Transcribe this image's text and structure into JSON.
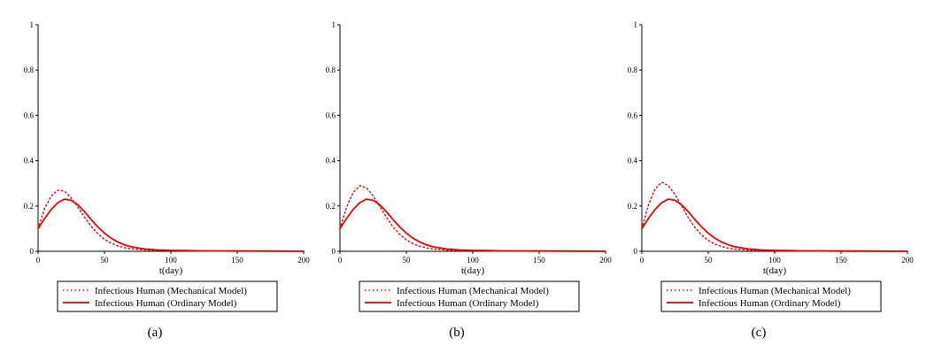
{
  "chart_data": [
    {
      "type": "line",
      "panel_label": "(a)",
      "xlabel": "t(day)",
      "xlim": [
        0,
        200
      ],
      "ylim": [
        0,
        1
      ],
      "x_ticks": [
        0,
        50,
        100,
        150,
        200
      ],
      "y_ticks": [
        0,
        0.2,
        0.4,
        0.6,
        0.8,
        1
      ],
      "y_tick_labels": [
        "0",
        "0.2",
        "0.4",
        "0.6",
        "0.8",
        "1"
      ],
      "legend": "bottom",
      "grid": false,
      "series": [
        {
          "name": "Infectious Human (Mechanical Model)",
          "style": "dotted",
          "color": "#e00000",
          "x": [
            0,
            5,
            10,
            15,
            20,
            25,
            30,
            35,
            40,
            45,
            50,
            55,
            60,
            65,
            70,
            80,
            90,
            100,
            110,
            120,
            130,
            150,
            200
          ],
          "y": [
            0.1,
            0.19,
            0.245,
            0.27,
            0.265,
            0.235,
            0.195,
            0.15,
            0.11,
            0.078,
            0.053,
            0.036,
            0.024,
            0.016,
            0.011,
            0.006,
            0.004,
            0.003,
            0.002,
            0.002,
            0.001,
            0.001,
            0.0
          ]
        },
        {
          "name": "Infectious Human (Ordinary Model)",
          "style": "solid",
          "color": "#e00000",
          "x": [
            0,
            5,
            10,
            15,
            20,
            25,
            30,
            35,
            40,
            45,
            50,
            55,
            60,
            65,
            70,
            80,
            90,
            100,
            110,
            120,
            150,
            200
          ],
          "y": [
            0.1,
            0.145,
            0.185,
            0.215,
            0.23,
            0.225,
            0.205,
            0.175,
            0.14,
            0.108,
            0.08,
            0.058,
            0.041,
            0.029,
            0.02,
            0.01,
            0.006,
            0.004,
            0.003,
            0.002,
            0.001,
            0.0
          ]
        }
      ]
    },
    {
      "type": "line",
      "panel_label": "(b)",
      "xlabel": "t(day)",
      "xlim": [
        0,
        200
      ],
      "ylim": [
        0,
        1
      ],
      "x_ticks": [
        0,
        50,
        100,
        150,
        200
      ],
      "y_ticks": [
        0,
        0.2,
        0.4,
        0.6,
        0.8,
        1
      ],
      "y_tick_labels": [
        "0",
        "0.2",
        "0.4",
        "0.6",
        "0.8",
        "1"
      ],
      "legend": "bottom",
      "grid": false,
      "series": [
        {
          "name": "Infectious Human (Mechanical Model)",
          "style": "dotted",
          "color": "#e00000",
          "x": [
            0,
            5,
            10,
            15,
            20,
            25,
            30,
            35,
            40,
            45,
            50,
            55,
            60,
            65,
            70,
            80,
            90,
            100,
            110,
            120,
            130,
            150,
            200
          ],
          "y": [
            0.1,
            0.195,
            0.26,
            0.29,
            0.28,
            0.245,
            0.198,
            0.15,
            0.108,
            0.075,
            0.05,
            0.034,
            0.022,
            0.015,
            0.01,
            0.005,
            0.003,
            0.002,
            0.002,
            0.001,
            0.001,
            0.001,
            0.0
          ]
        },
        {
          "name": "Infectious Human (Ordinary Model)",
          "style": "solid",
          "color": "#e00000",
          "x": [
            0,
            5,
            10,
            15,
            20,
            25,
            30,
            35,
            40,
            45,
            50,
            55,
            60,
            65,
            70,
            80,
            90,
            100,
            110,
            120,
            150,
            200
          ],
          "y": [
            0.1,
            0.145,
            0.185,
            0.215,
            0.23,
            0.225,
            0.205,
            0.175,
            0.14,
            0.108,
            0.08,
            0.058,
            0.041,
            0.029,
            0.02,
            0.01,
            0.006,
            0.004,
            0.003,
            0.002,
            0.001,
            0.0
          ]
        }
      ]
    },
    {
      "type": "line",
      "panel_label": "(c)",
      "xlabel": "t(day)",
      "xlim": [
        0,
        200
      ],
      "ylim": [
        0,
        1
      ],
      "x_ticks": [
        0,
        50,
        100,
        150,
        200
      ],
      "y_ticks": [
        0,
        0.2,
        0.4,
        0.6,
        0.8,
        1
      ],
      "y_tick_labels": [
        "0",
        "0.2",
        "0.4",
        "0.6",
        "0.8",
        "1"
      ],
      "legend": "bottom",
      "grid": false,
      "series": [
        {
          "name": "Infectious Human (Mechanical Model)",
          "style": "dotted",
          "color": "#e00000",
          "x": [
            0,
            5,
            10,
            15,
            20,
            25,
            30,
            35,
            40,
            45,
            50,
            55,
            60,
            65,
            70,
            80,
            90,
            100,
            110,
            120,
            130,
            150,
            200
          ],
          "y": [
            0.1,
            0.205,
            0.275,
            0.305,
            0.29,
            0.25,
            0.2,
            0.148,
            0.105,
            0.072,
            0.048,
            0.032,
            0.021,
            0.014,
            0.009,
            0.005,
            0.003,
            0.002,
            0.001,
            0.001,
            0.001,
            0.0,
            0.0
          ]
        },
        {
          "name": "Infectious Human (Ordinary Model)",
          "style": "solid",
          "color": "#e00000",
          "x": [
            0,
            5,
            10,
            15,
            20,
            25,
            30,
            35,
            40,
            45,
            50,
            55,
            60,
            65,
            70,
            80,
            90,
            100,
            110,
            120,
            150,
            200
          ],
          "y": [
            0.1,
            0.145,
            0.185,
            0.215,
            0.23,
            0.225,
            0.205,
            0.175,
            0.14,
            0.108,
            0.08,
            0.058,
            0.041,
            0.029,
            0.02,
            0.01,
            0.006,
            0.004,
            0.003,
            0.002,
            0.001,
            0.0
          ]
        }
      ]
    }
  ]
}
